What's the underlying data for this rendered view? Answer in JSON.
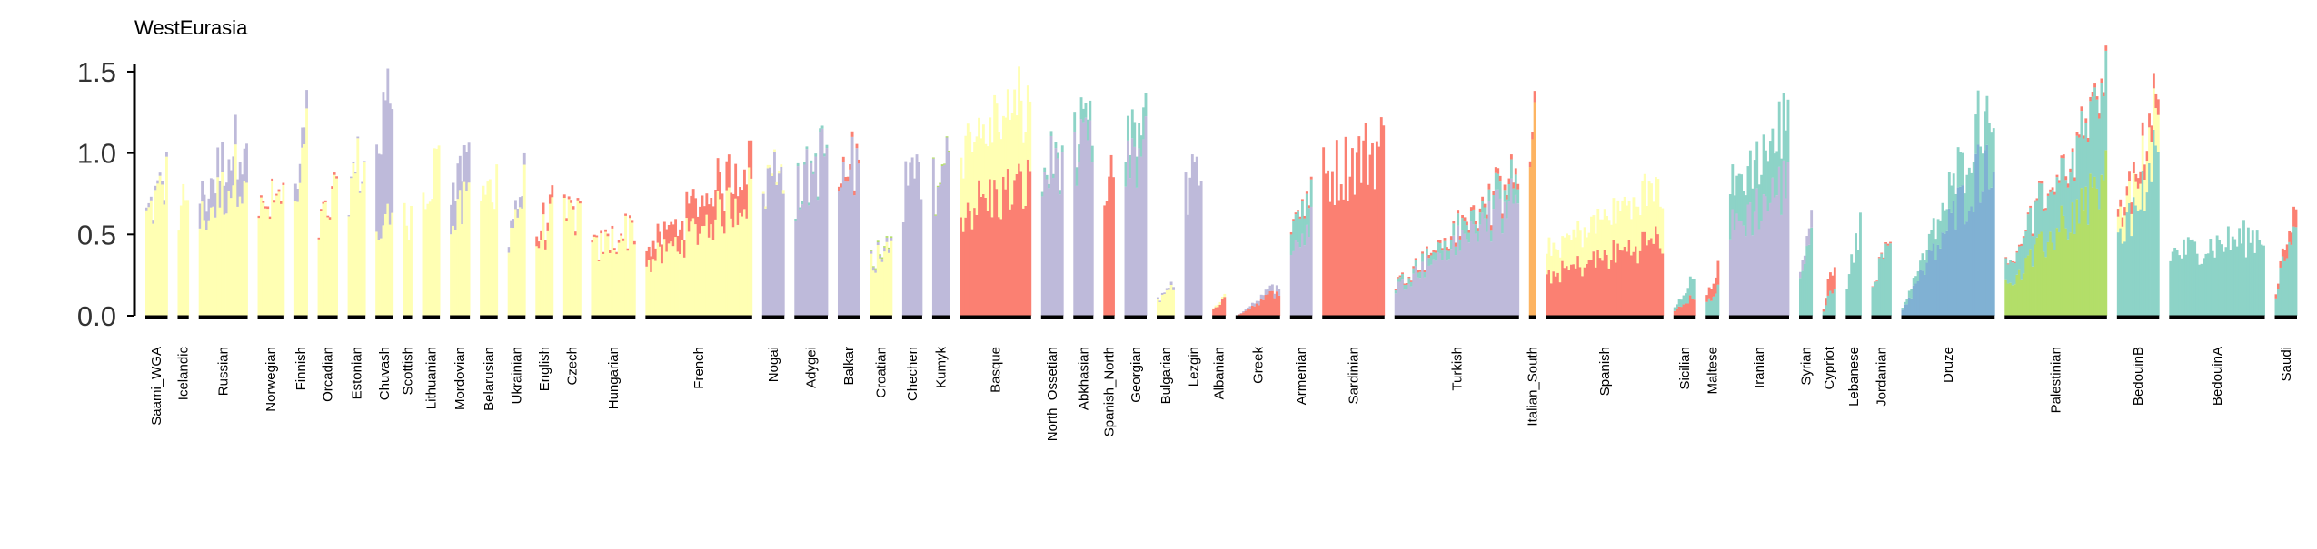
{
  "chart_data": {
    "type": "bar",
    "title": "WestEurasia",
    "xlabel": "",
    "ylabel": "",
    "ylim": [
      0,
      1.55
    ],
    "yticks": [
      0.0,
      0.5,
      1.0,
      1.5
    ],
    "ytick_labels": [
      "0.0",
      "0.5",
      "1.0",
      "1.5"
    ],
    "grid": false,
    "legend": "none",
    "component_colors": {
      "yellow": "#ffffb3",
      "lavender": "#bebada",
      "salmon": "#fb8072",
      "teal": "#8dd3c7",
      "blue": "#80b1d3",
      "orange": "#fdb462",
      "lime": "#b3de69"
    },
    "groups": [
      {
        "name": "Saami_WGA",
        "n": 10,
        "lo": 0.62,
        "hi": 0.85,
        "mix": {
          "yellow": 0.97,
          "lavender": 0.03
        }
      },
      {
        "name": "Icelandic",
        "n": 5,
        "lo": 0.65,
        "hi": 0.8,
        "mix": {
          "yellow": 1.0
        }
      },
      {
        "name": "Russian",
        "n": 22,
        "lo": 0.7,
        "hi": 1.16,
        "mix": {
          "yellow": 0.82,
          "lavender": 0.18
        }
      },
      {
        "name": "Norwegian",
        "n": 12,
        "lo": 0.62,
        "hi": 0.75,
        "mix": {
          "yellow": 0.98,
          "salmon": 0.02
        }
      },
      {
        "name": "Finnish",
        "n": 6,
        "lo": 0.7,
        "hi": 1.19,
        "mix": {
          "yellow": 0.88,
          "lavender": 0.12
        }
      },
      {
        "name": "Orcadian",
        "n": 9,
        "lo": 0.55,
        "hi": 0.73,
        "mix": {
          "yellow": 0.98,
          "salmon": 0.02
        }
      },
      {
        "name": "Estonian",
        "n": 8,
        "lo": 0.82,
        "hi": 0.98,
        "mix": {
          "yellow": 0.99,
          "lavender": 0.01
        }
      },
      {
        "name": "Chuvash",
        "n": 8,
        "lo": 1.05,
        "hi": 1.42,
        "mix": {
          "yellow": 0.45,
          "lavender": 0.55
        }
      },
      {
        "name": "Scottish",
        "n": 4,
        "lo": 0.58,
        "hi": 0.64,
        "mix": {
          "yellow": 1.0
        }
      },
      {
        "name": "Lithuanian",
        "n": 8,
        "lo": 0.8,
        "hi": 0.95,
        "mix": {
          "yellow": 1.0
        }
      },
      {
        "name": "Mordovian",
        "n": 9,
        "lo": 0.75,
        "hi": 0.98,
        "mix": {
          "yellow": 0.72,
          "lavender": 0.28
        }
      },
      {
        "name": "Belarusian",
        "n": 8,
        "lo": 0.7,
        "hi": 0.82,
        "mix": {
          "yellow": 1.0
        }
      },
      {
        "name": "Ukrainian",
        "n": 8,
        "lo": 0.55,
        "hi": 0.83,
        "mix": {
          "yellow": 0.92,
          "lavender": 0.08
        }
      },
      {
        "name": "English",
        "n": 8,
        "lo": 0.5,
        "hi": 0.66,
        "mix": {
          "yellow": 0.9,
          "salmon": 0.1
        }
      },
      {
        "name": "Czech",
        "n": 8,
        "lo": 0.6,
        "hi": 0.66,
        "mix": {
          "yellow": 0.97,
          "salmon": 0.03
        }
      },
      {
        "name": "Hungarian",
        "n": 20,
        "lo": 0.4,
        "hi": 0.56,
        "mix": {
          "yellow": 0.97,
          "salmon": 0.03
        }
      },
      {
        "name": "French",
        "n": 48,
        "lo": 0.4,
        "hi": 0.98,
        "mix": {
          "yellow": 0.78,
          "salmon": 0.22
        }
      },
      {
        "name": "Nogai",
        "n": 10,
        "lo": 0.8,
        "hi": 0.99,
        "mix": {
          "lavender": 0.98,
          "yellow": 0.02
        }
      },
      {
        "name": "Adygei",
        "n": 15,
        "lo": 0.75,
        "hi": 1.03,
        "mix": {
          "lavender": 0.98,
          "teal": 0.02
        }
      },
      {
        "name": "Balkar",
        "n": 10,
        "lo": 0.8,
        "hi": 0.98,
        "mix": {
          "lavender": 0.97,
          "salmon": 0.03
        }
      },
      {
        "name": "Croatian",
        "n": 10,
        "lo": 0.35,
        "hi": 0.47,
        "mix": {
          "yellow": 0.93,
          "lavender": 0.05,
          "lime": 0.02
        }
      },
      {
        "name": "Chechen",
        "n": 9,
        "lo": 0.75,
        "hi": 0.93,
        "mix": {
          "lavender": 1.0
        }
      },
      {
        "name": "Kumyk",
        "n": 8,
        "lo": 0.8,
        "hi": 0.97,
        "mix": {
          "lavender": 0.99,
          "lime": 0.01
        }
      },
      {
        "name": "Basque",
        "n": 32,
        "lo": 1.05,
        "hi": 1.3,
        "mix": {
          "salmon": 0.62,
          "yellow": 0.38
        }
      },
      {
        "name": "North_Ossetian",
        "n": 10,
        "lo": 0.85,
        "hi": 1.04,
        "mix": {
          "lavender": 0.97,
          "teal": 0.03
        }
      },
      {
        "name": "Abkhasian",
        "n": 9,
        "lo": 1.05,
        "hi": 1.13,
        "mix": {
          "lavender": 0.9,
          "teal": 0.1
        }
      },
      {
        "name": "Spanish_North",
        "n": 5,
        "lo": 0.55,
        "hi": 1.0,
        "mix": {
          "salmon": 1.0
        }
      },
      {
        "name": "Georgian",
        "n": 10,
        "lo": 1.0,
        "hi": 1.18,
        "mix": {
          "lavender": 0.86,
          "teal": 0.14
        }
      },
      {
        "name": "Bulgarian",
        "n": 8,
        "lo": 0.1,
        "hi": 0.22,
        "mix": {
          "yellow": 0.92,
          "lavender": 0.08
        }
      },
      {
        "name": "Lezgin",
        "n": 8,
        "lo": 0.75,
        "hi": 0.9,
        "mix": {
          "lavender": 1.0
        }
      },
      {
        "name": "Albanian",
        "n": 6,
        "lo": 0.05,
        "hi": 0.12,
        "mix": {
          "salmon": 0.85,
          "yellow": 0.15
        }
      },
      {
        "name": "Greek",
        "n": 20,
        "lo": 0.0,
        "hi": 0.2,
        "mix": {
          "salmon": 0.8,
          "lavender": 0.2
        }
      },
      {
        "name": "Armenian",
        "n": 10,
        "lo": 0.6,
        "hi": 0.78,
        "mix": {
          "lavender": 0.72,
          "teal": 0.26,
          "salmon": 0.02
        }
      },
      {
        "name": "Sardinian",
        "n": 28,
        "lo": 0.85,
        "hi": 1.05,
        "mix": {
          "salmon": 1.0
        }
      },
      {
        "name": "Turkish",
        "n": 56,
        "lo": 0.2,
        "hi": 0.86,
        "mix": {
          "lavender": 0.84,
          "teal": 0.12,
          "salmon": 0.04
        }
      },
      {
        "name": "Italian_South",
        "n": 3,
        "lo": 0.9,
        "hi": 1.12,
        "mix": {
          "orange": 0.95,
          "salmon": 0.05
        }
      },
      {
        "name": "Spanish",
        "n": 53,
        "lo": 0.4,
        "hi": 0.8,
        "mix": {
          "salmon": 0.6,
          "yellow": 0.4
        }
      },
      {
        "name": "Sicilian",
        "n": 10,
        "lo": 0.05,
        "hi": 0.25,
        "mix": {
          "salmon": 0.5,
          "teal": 0.5
        }
      },
      {
        "name": "Maltese",
        "n": 6,
        "lo": 0.12,
        "hi": 0.3,
        "mix": {
          "teal": 0.6,
          "salmon": 0.4
        }
      },
      {
        "name": "Iranian",
        "n": 27,
        "lo": 0.75,
        "hi": 1.17,
        "mix": {
          "lavender": 0.7,
          "teal": 0.3
        }
      },
      {
        "name": "Syrian",
        "n": 6,
        "lo": 0.3,
        "hi": 0.63,
        "mix": {
          "teal": 0.85,
          "lavender": 0.15
        }
      },
      {
        "name": "Cypriot",
        "n": 6,
        "lo": 0.05,
        "hi": 0.38,
        "mix": {
          "teal": 0.55,
          "salmon": 0.45
        }
      },
      {
        "name": "Lebanese",
        "n": 7,
        "lo": 0.2,
        "hi": 0.6,
        "mix": {
          "teal": 1.0
        }
      },
      {
        "name": "Jordanian",
        "n": 9,
        "lo": 0.15,
        "hi": 0.54,
        "mix": {
          "teal": 0.98,
          "salmon": 0.02
        }
      },
      {
        "name": "Druze",
        "n": 42,
        "lo": 0.05,
        "hi": 1.4,
        "mix": {
          "blue": 0.75,
          "teal": 0.25
        }
      },
      {
        "name": "Palestinian",
        "n": 46,
        "lo": 0.3,
        "hi": 1.41,
        "mix": {
          "lime": 0.6,
          "teal": 0.38,
          "salmon": 0.02
        }
      },
      {
        "name": "BedouinB",
        "n": 19,
        "lo": 0.6,
        "hi": 1.3,
        "mix": {
          "teal": 0.75,
          "yellow": 0.18,
          "salmon": 0.07
        }
      },
      {
        "name": "BedouinA",
        "n": 43,
        "lo": 0.38,
        "hi": 0.5,
        "mix": {
          "teal": 1.0
        }
      },
      {
        "name": "Saudi",
        "n": 10,
        "lo": 0.15,
        "hi": 0.75,
        "mix": {
          "teal": 0.85,
          "salmon": 0.15
        }
      }
    ],
    "tick_labels": [
      "Saami_WGA",
      "Icelandic",
      "Russian",
      "Norwegian",
      "Finnish",
      "Orcadian",
      "Estonian",
      "Chuvash",
      "Scottish",
      "Lithuanian",
      "Mordovian",
      "Belarusian",
      "Ukrainian",
      "English",
      "Czech",
      "Hungarian",
      "French",
      "Nogai",
      "Adygei",
      "Balkar",
      "Croatian",
      "Chechen",
      "Kumyk",
      "Basque",
      "North_Ossetian",
      "Abkhasian",
      "Spanish_North",
      "Georgian",
      "Bulgarian",
      "Lezgin",
      "Albanian",
      "Greek",
      "Armenian",
      "Sardinian",
      "Turkish",
      "Italian_South",
      "Spanish",
      "Sicilian",
      "Maltese",
      "Iranian",
      "Syrian",
      "Cypriot",
      "Lebanese",
      "Jordanian",
      "Druze",
      "Palestinian",
      "BedouinB",
      "BedouinA",
      "Saudi"
    ]
  }
}
